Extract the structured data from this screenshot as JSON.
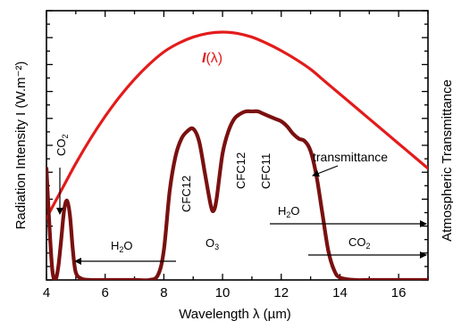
{
  "chart_data": {
    "type": "line",
    "xlabel": "Wavelength λ (µm)",
    "ylabel": "Radiation Intensity I (W.m⁻²)",
    "y2label": "Atmospheric Transmittance",
    "xlim": [
      4,
      17
    ],
    "ylim": [
      0,
      1
    ],
    "x_ticks": [
      4,
      6,
      8,
      10,
      12,
      14,
      16
    ],
    "grid": false,
    "series": [
      {
        "name": "I(λ)",
        "color": "#e31b1b",
        "x": [
          4,
          4.5,
          5,
          5.5,
          6,
          6.5,
          7,
          7.5,
          8,
          8.5,
          9,
          9.5,
          10,
          10.5,
          11,
          11.5,
          12,
          12.5,
          13,
          13.5,
          14,
          14.5,
          15,
          15.5,
          16,
          16.5,
          17
        ],
        "y": [
          0.25,
          0.36,
          0.47,
          0.57,
          0.66,
          0.74,
          0.81,
          0.87,
          0.92,
          0.955,
          0.98,
          0.995,
          1.0,
          0.995,
          0.98,
          0.955,
          0.925,
          0.89,
          0.85,
          0.8,
          0.75,
          0.7,
          0.65,
          0.6,
          0.55,
          0.5,
          0.45
        ]
      },
      {
        "name": "transmittance",
        "color": "#7a1010",
        "x": [
          4,
          4.1,
          4.2,
          4.3,
          4.4,
          4.5,
          4.6,
          4.7,
          4.8,
          4.9,
          5.0,
          5.2,
          5.5,
          6,
          7,
          7.5,
          7.8,
          8.0,
          8.2,
          8.4,
          8.6,
          8.8,
          9.0,
          9.2,
          9.4,
          9.6,
          9.7,
          9.8,
          10.0,
          10.2,
          10.4,
          10.6,
          10.8,
          11.0,
          11.2,
          11.4,
          11.6,
          11.8,
          12.0,
          12.2,
          12.4,
          12.6,
          12.8,
          13.0,
          13.2,
          13.4,
          13.6,
          13.8,
          14.0,
          14.5,
          15,
          16,
          17
        ],
        "y": [
          0.45,
          0.22,
          0.04,
          0.0,
          0.05,
          0.16,
          0.28,
          0.32,
          0.26,
          0.12,
          0.03,
          0.005,
          0.0,
          0.0,
          0.0,
          0.0,
          0.02,
          0.12,
          0.36,
          0.5,
          0.57,
          0.6,
          0.61,
          0.56,
          0.43,
          0.3,
          0.28,
          0.33,
          0.51,
          0.6,
          0.65,
          0.67,
          0.68,
          0.68,
          0.68,
          0.67,
          0.66,
          0.65,
          0.64,
          0.62,
          0.59,
          0.57,
          0.56,
          0.52,
          0.42,
          0.27,
          0.12,
          0.04,
          0.01,
          0.0,
          0.0,
          0.0,
          0.0
        ]
      }
    ],
    "annotations": {
      "i_lambda_italic": "I",
      "i_lambda_rest": "(λ)",
      "co2_left": "CO",
      "co2_sub": "2",
      "h2o_left_main": "H",
      "h2o_left_sub": "2",
      "h2o_left_end": "O",
      "cfc12_left": "CFC12",
      "o3_main": "O",
      "o3_sub": "3",
      "cfc12_right": "CFC12",
      "cfc11": "CFC11",
      "transmittance": "transmittance",
      "h2o_right_main": "H",
      "h2o_right_sub": "2",
      "h2o_right_end": "O",
      "co2_right_main": "CO",
      "co2_right_sub": "2"
    }
  }
}
